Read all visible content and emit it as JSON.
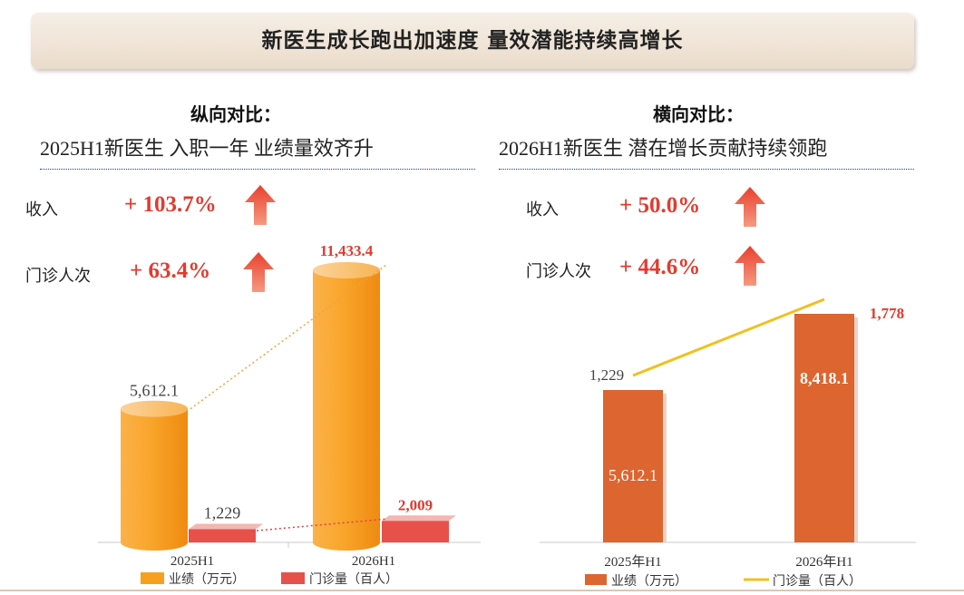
{
  "banner": {
    "title": "新医生成长跑出加速度  量效潜能持续高增长"
  },
  "left_panel": {
    "heading": "纵向对比：",
    "subtitle": "2025H1新医生 入职一年 业绩量效齐升",
    "metrics": [
      {
        "label": "收入",
        "value": "+ 103.7%"
      },
      {
        "label": "门诊人次",
        "value": "+ 63.4%"
      }
    ]
  },
  "right_panel": {
    "heading": "横向对比：",
    "subtitle": "2026H1新医生 潜在增长贡献持续领跑",
    "metrics": [
      {
        "label": "收入",
        "value": "+ 50.0%"
      },
      {
        "label": "门诊人次",
        "value": "+ 44.6%"
      }
    ]
  },
  "colors": {
    "accent_red": "#e23b2e",
    "orange": "#f7a01e",
    "red_bar": "#e8504a",
    "rust_bar": "#dc6530",
    "line_yellow": "#f0c020"
  },
  "chart_data": [
    {
      "type": "bar",
      "categories": [
        "2025H1",
        "2026H1"
      ],
      "series": [
        {
          "name": "业绩（万元）",
          "values": [
            5612.1,
            11433.4
          ],
          "labels": [
            "5,612.1",
            "11,433.4"
          ]
        },
        {
          "name": "门诊量（百人）",
          "values": [
            1229,
            2009
          ],
          "labels": [
            "1,229",
            "2,009"
          ]
        }
      ],
      "ylim": [
        0,
        12500
      ],
      "legend": "bottom"
    },
    {
      "type": "bar",
      "categories": [
        "2025年H1",
        "2026年H1"
      ],
      "series": [
        {
          "name": "业绩（万元）",
          "type": "bar",
          "values": [
            5612.1,
            8418.1
          ],
          "labels": [
            "5,612.1",
            "8,418.1"
          ]
        },
        {
          "name": "门诊量（百人）",
          "type": "line",
          "values": [
            1229,
            1778
          ],
          "labels": [
            "1,229",
            "1,778"
          ]
        }
      ],
      "ylim": [
        0,
        10000
      ],
      "legend": "bottom"
    }
  ]
}
